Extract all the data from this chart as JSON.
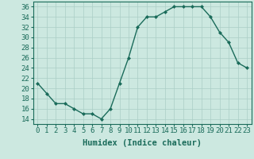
{
  "x": [
    0,
    1,
    2,
    3,
    4,
    5,
    6,
    7,
    8,
    9,
    10,
    11,
    12,
    13,
    14,
    15,
    16,
    17,
    18,
    19,
    20,
    21,
    22,
    23
  ],
  "y": [
    21,
    19,
    17,
    17,
    16,
    15,
    15,
    14,
    16,
    21,
    26,
    32,
    34,
    34,
    35,
    36,
    36,
    36,
    36,
    34,
    31,
    29,
    25,
    24
  ],
  "line_color": "#1a6b5a",
  "marker": "D",
  "marker_size": 2.0,
  "bg_color": "#cce8e0",
  "grid_color": "#aacec6",
  "xlabel": "Humidex (Indice chaleur)",
  "xlim": [
    -0.5,
    23.5
  ],
  "ylim": [
    13,
    37
  ],
  "yticks": [
    14,
    16,
    18,
    20,
    22,
    24,
    26,
    28,
    30,
    32,
    34,
    36
  ],
  "xticks": [
    0,
    1,
    2,
    3,
    4,
    5,
    6,
    7,
    8,
    9,
    10,
    11,
    12,
    13,
    14,
    15,
    16,
    17,
    18,
    19,
    20,
    21,
    22,
    23
  ],
  "tick_color": "#1a6b5a",
  "xlabel_fontsize": 7.5,
  "tick_fontsize": 6.5,
  "linewidth": 1.0
}
